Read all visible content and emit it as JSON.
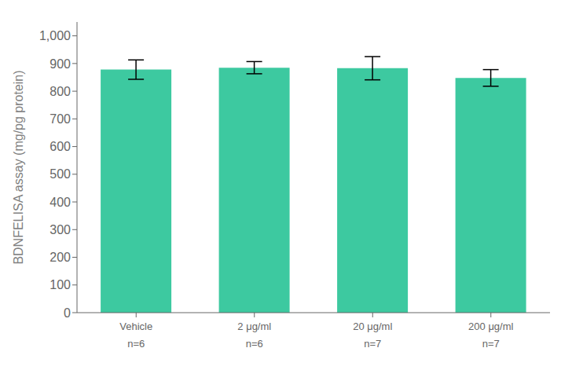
{
  "chart_data": {
    "type": "bar",
    "categories": [
      "Vehicle",
      "2 μg/ml",
      "20 μg/ml",
      "200 μg/ml"
    ],
    "values": [
      878,
      885,
      883,
      848
    ],
    "errors": [
      35,
      22,
      42,
      30
    ],
    "annotations": [
      "n=6",
      "n=6",
      "n=7",
      "n=7"
    ],
    "color": "#3DC9A0",
    "ylabel": "BDNFELISA assay (mg/pg protein)",
    "ylim": [
      0,
      1050
    ],
    "yticks": [
      0,
      100,
      200,
      300,
      400,
      500,
      600,
      700,
      800,
      900,
      {
        "value": 1000,
        "label": "1,000"
      }
    ],
    "grid": false
  }
}
